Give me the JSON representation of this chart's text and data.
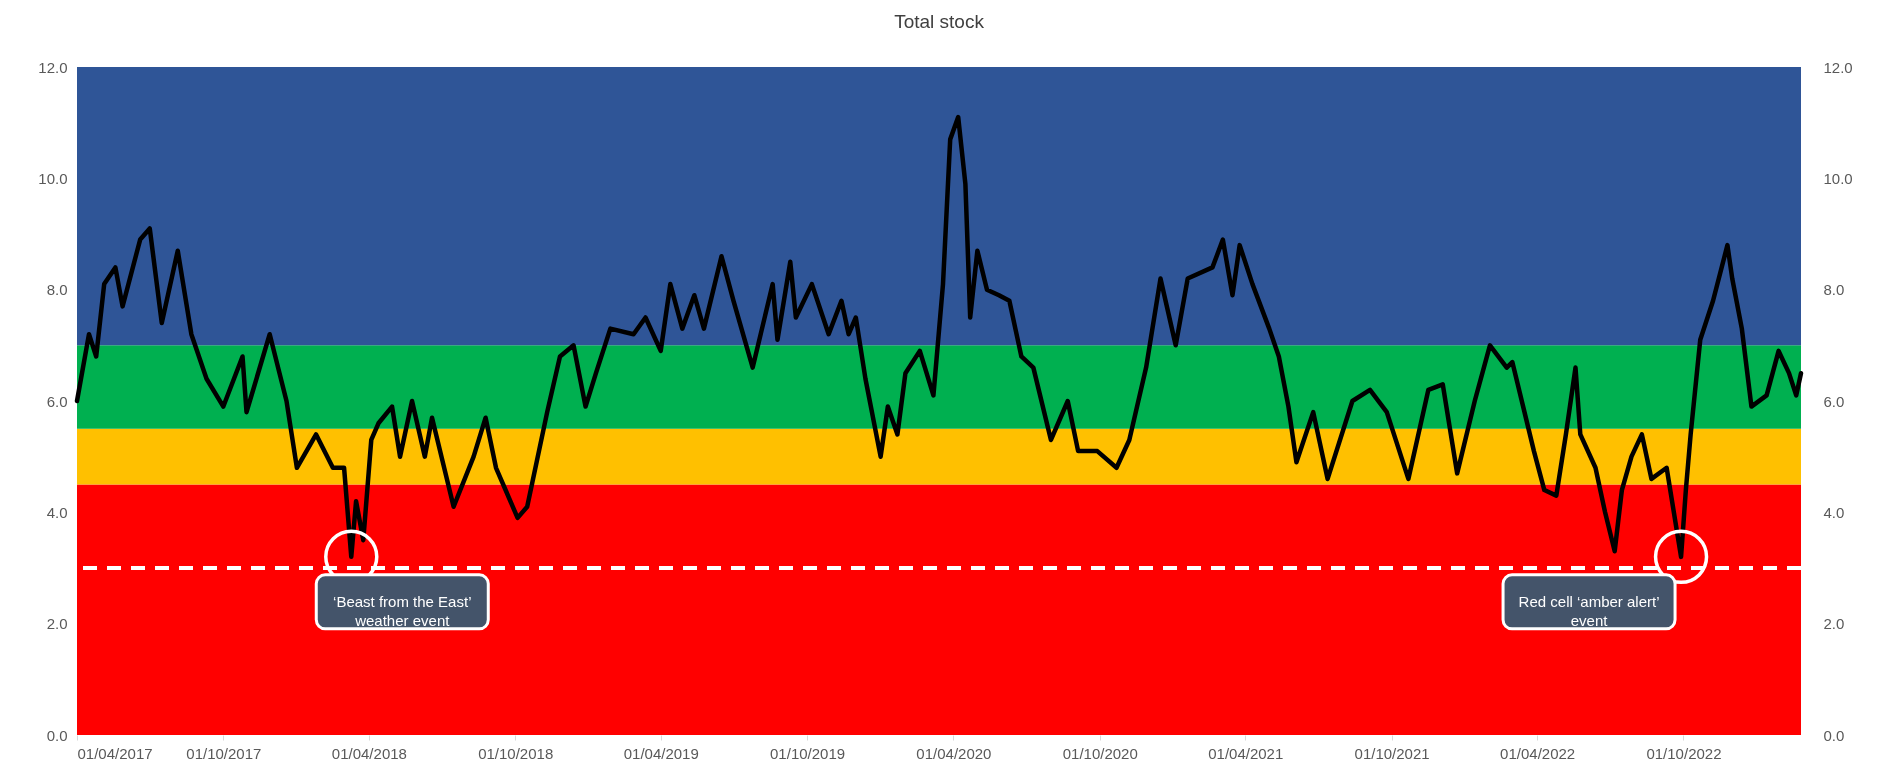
{
  "chart_data": {
    "type": "line",
    "title": "Total stock",
    "x": [
      "2017-04-01",
      "2017-04-16",
      "2017-04-25",
      "2017-05-05",
      "2017-05-19",
      "2017-05-28",
      "2017-06-19",
      "2017-07-01",
      "2017-07-16",
      "2017-08-05",
      "2017-08-22",
      "2017-09-10",
      "2017-10-01",
      "2017-10-25",
      "2017-10-30",
      "2017-11-28",
      "2017-12-19",
      "2018-01-01",
      "2018-01-25",
      "2018-02-15",
      "2018-03-01",
      "2018-03-10",
      "2018-03-16",
      "2018-03-25",
      "2018-04-04",
      "2018-04-13",
      "2018-04-30",
      "2018-05-10",
      "2018-05-25",
      "2018-06-10",
      "2018-06-19",
      "2018-07-16",
      "2018-08-10",
      "2018-08-25",
      "2018-09-07",
      "2018-10-04",
      "2018-10-16",
      "2018-11-10",
      "2018-11-26",
      "2018-12-13",
      "2018-12-28",
      "2019-01-10",
      "2019-01-28",
      "2019-02-26",
      "2019-03-13",
      "2019-04-01",
      "2019-04-13",
      "2019-04-28",
      "2019-05-13",
      "2019-05-25",
      "2019-06-16",
      "2019-07-01",
      "2019-07-25",
      "2019-08-19",
      "2019-08-25",
      "2019-09-10",
      "2019-09-17",
      "2019-10-07",
      "2019-10-28",
      "2019-11-13",
      "2019-11-22",
      "2019-12-01",
      "2019-12-13",
      "2020-01-01",
      "2020-01-10",
      "2020-01-22",
      "2020-02-01",
      "2020-02-19",
      "2020-03-07",
      "2020-03-19",
      "2020-03-28",
      "2020-04-07",
      "2020-04-16",
      "2020-04-22",
      "2020-05-01",
      "2020-05-13",
      "2020-05-28",
      "2020-06-10",
      "2020-06-25",
      "2020-07-10",
      "2020-08-01",
      "2020-08-22",
      "2020-09-04",
      "2020-09-28",
      "2020-10-22",
      "2020-11-07",
      "2020-11-28",
      "2020-12-16",
      "2021-01-04",
      "2021-01-19",
      "2021-02-19",
      "2021-03-04",
      "2021-03-16",
      "2021-03-25",
      "2021-04-10",
      "2021-05-01",
      "2021-05-13",
      "2021-05-25",
      "2021-06-04",
      "2021-06-25",
      "2021-07-13",
      "2021-08-13",
      "2021-09-04",
      "2021-09-25",
      "2021-10-22",
      "2021-11-16",
      "2021-12-04",
      "2021-12-22",
      "2022-01-13",
      "2022-02-01",
      "2022-02-22",
      "2022-03-01",
      "2022-03-28",
      "2022-04-10",
      "2022-04-25",
      "2022-05-07",
      "2022-05-19",
      "2022-05-25",
      "2022-06-13",
      "2022-06-25",
      "2022-07-07",
      "2022-07-16",
      "2022-07-28",
      "2022-08-10",
      "2022-08-22",
      "2022-09-10",
      "2022-09-28",
      "2022-10-04",
      "2022-10-10",
      "2022-10-22",
      "2022-11-07",
      "2022-11-25",
      "2022-12-01",
      "2022-12-13",
      "2022-12-25",
      "2023-01-13",
      "2023-01-28",
      "2023-02-10",
      "2023-02-19",
      "2023-02-25"
    ],
    "series": [
      {
        "color": "#000000",
        "values": [
          6.0,
          7.2,
          6.8,
          8.1,
          8.4,
          7.7,
          8.9,
          9.1,
          7.4,
          8.7,
          7.2,
          6.4,
          5.9,
          6.8,
          5.8,
          7.2,
          6.0,
          4.8,
          5.4,
          4.8,
          4.8,
          3.2,
          4.2,
          3.5,
          5.3,
          5.6,
          5.9,
          5.0,
          6.0,
          5.0,
          5.7,
          4.1,
          5.0,
          5.7,
          4.8,
          3.9,
          4.1,
          5.8,
          6.8,
          7.0,
          5.9,
          6.5,
          7.3,
          7.2,
          7.5,
          6.9,
          8.1,
          7.3,
          7.9,
          7.3,
          8.6,
          7.8,
          6.6,
          8.1,
          7.1,
          8.5,
          7.5,
          8.1,
          7.2,
          7.8,
          7.2,
          7.5,
          6.4,
          5.0,
          5.9,
          5.4,
          6.5,
          6.9,
          6.1,
          8.1,
          10.7,
          11.1,
          9.9,
          7.5,
          8.7,
          8.0,
          7.9,
          7.8,
          6.8,
          6.6,
          5.3,
          6.0,
          5.1,
          5.1,
          4.8,
          5.3,
          6.6,
          8.2,
          7.0,
          8.2,
          8.4,
          8.9,
          7.9,
          8.8,
          8.1,
          7.3,
          6.8,
          5.9,
          4.9,
          5.8,
          4.6,
          6.0,
          6.2,
          5.8,
          4.6,
          6.2,
          6.3,
          4.7,
          6.0,
          7.0,
          6.6,
          6.7,
          5.1,
          4.4,
          4.3,
          5.4,
          6.6,
          5.4,
          4.8,
          4.0,
          3.3,
          4.4,
          5.0,
          5.4,
          4.6,
          4.8,
          3.2,
          4.4,
          5.4,
          7.1,
          7.8,
          8.8,
          8.2,
          7.3,
          5.9,
          6.1,
          6.9,
          6.5,
          6.1,
          6.5
        ]
      }
    ],
    "xlim": [
      "2017-04-01",
      "2023-02-25"
    ],
    "xticks": [
      {
        "value": "2017-04-01",
        "label": "01/04/2017"
      },
      {
        "value": "2017-10-01",
        "label": "01/10/2017"
      },
      {
        "value": "2018-04-01",
        "label": "01/04/2018"
      },
      {
        "value": "2018-10-01",
        "label": "01/10/2018"
      },
      {
        "value": "2019-04-01",
        "label": "01/04/2019"
      },
      {
        "value": "2019-10-01",
        "label": "01/10/2019"
      },
      {
        "value": "2020-04-01",
        "label": "01/04/2020"
      },
      {
        "value": "2020-10-01",
        "label": "01/10/2020"
      },
      {
        "value": "2021-04-01",
        "label": "01/04/2021"
      },
      {
        "value": "2021-10-01",
        "label": "01/10/2021"
      },
      {
        "value": "2022-04-01",
        "label": "01/04/2022"
      },
      {
        "value": "2022-10-01",
        "label": "01/10/2022"
      }
    ],
    "ylim": [
      0,
      12
    ],
    "yticks": [
      {
        "value": 0,
        "label": "0.0"
      },
      {
        "value": 2,
        "label": "2.0"
      },
      {
        "value": 4,
        "label": "4.0"
      },
      {
        "value": 6,
        "label": "6.0"
      },
      {
        "value": 8,
        "label": "8.0"
      },
      {
        "value": 10,
        "label": "10.0"
      },
      {
        "value": 12,
        "label": "12.0"
      }
    ],
    "y2lim": [
      0,
      12
    ],
    "y2ticks": [
      {
        "value": 0,
        "label": "0.0"
      },
      {
        "value": 2,
        "label": "2.0"
      },
      {
        "value": 4,
        "label": "4.0"
      },
      {
        "value": 6,
        "label": "6.0"
      },
      {
        "value": 8,
        "label": "8.0"
      },
      {
        "value": 10,
        "label": "10.0"
      },
      {
        "value": 12,
        "label": "12.0"
      }
    ],
    "bands": [
      {
        "axis": "y",
        "from": 0,
        "to": 4.5,
        "color": "#ff0000"
      },
      {
        "axis": "y",
        "from": 4.5,
        "to": 5.5,
        "color": "#ffc000"
      },
      {
        "axis": "y",
        "from": 5.5,
        "to": 7,
        "color": "#00b050"
      },
      {
        "axis": "y",
        "from": 7,
        "to": 12,
        "color": "#2f5597"
      }
    ],
    "ref_lines": [
      {
        "axis": "y",
        "value": 3,
        "color": "#ffffff",
        "line_style": "dashed"
      }
    ],
    "annotations": [
      {
        "text": "‘Beast from the East’ weather event",
        "x": "2018-03-10",
        "y": 3.2
      },
      {
        "text": "Red cell ‘amber alert’ event",
        "x": "2022-09-28",
        "y": 3.2
      }
    ],
    "grid": false
  }
}
